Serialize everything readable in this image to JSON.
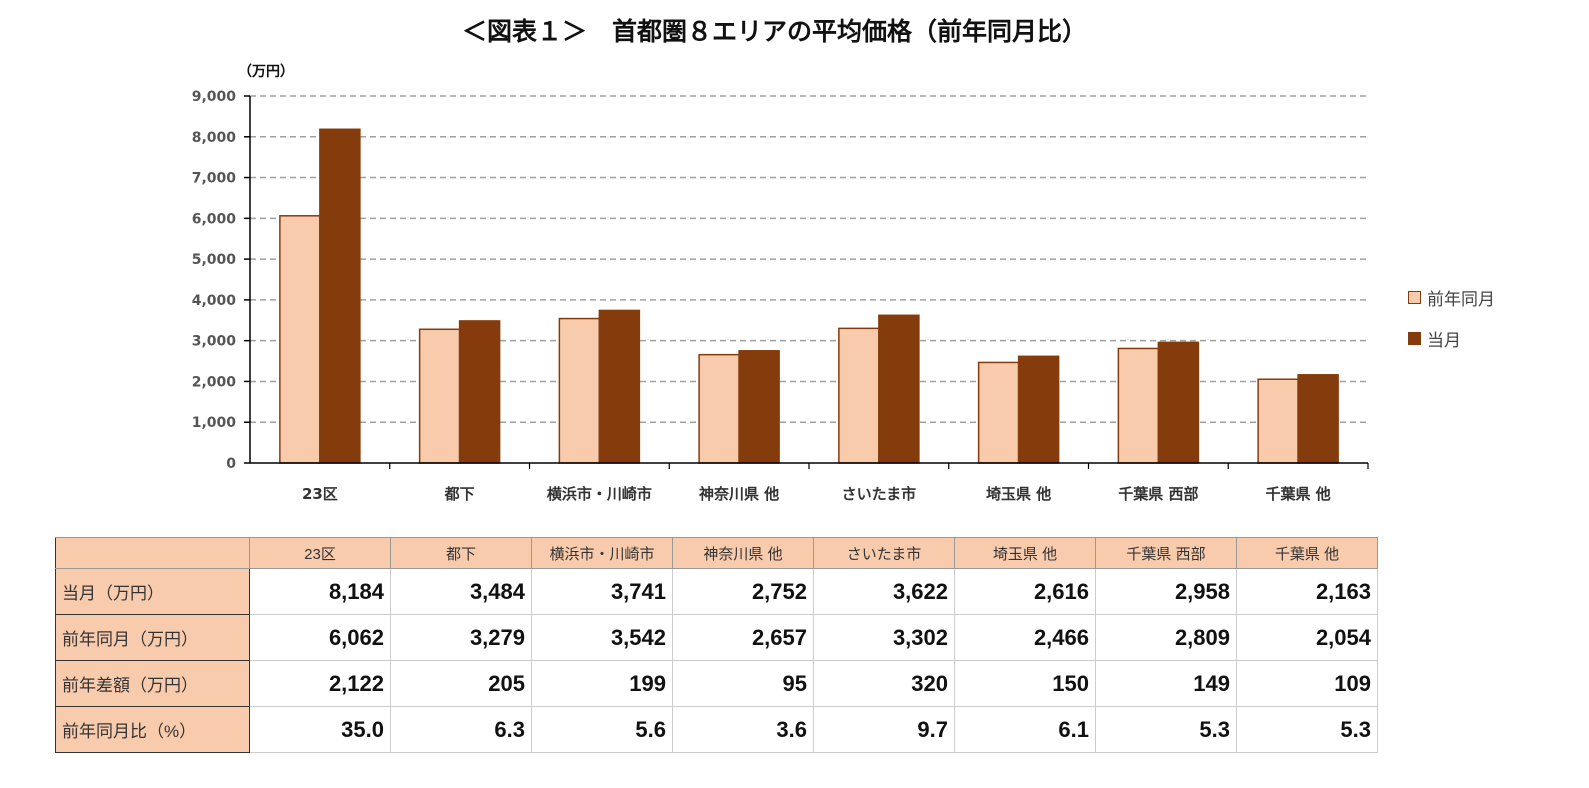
{
  "title": "＜図表１＞　首都圏８エリアの平均価格（前年同月比）",
  "chart_data": {
    "type": "bar",
    "title": "＜図表１＞　首都圏８エリアの平均価格（前年同月比）",
    "ylabel": "（万円）",
    "ylim": [
      0,
      9000
    ],
    "yticks": [
      "0",
      "1,000",
      "2,000",
      "3,000",
      "4,000",
      "5,000",
      "6,000",
      "7,000",
      "8,000",
      "9,000"
    ],
    "grid": true,
    "legend_position": "right",
    "categories": [
      "23区",
      "都下",
      "横浜市・川崎市",
      "神奈川県 他",
      "さいたま市",
      "埼玉県 他",
      "千葉県 西部",
      "千葉県 他"
    ],
    "series": [
      {
        "name": "前年同月",
        "color": "#f8cbad",
        "values": [
          6062,
          3279,
          3542,
          2657,
          3302,
          2466,
          2809,
          2054
        ]
      },
      {
        "name": "当月",
        "color": "#843c0c",
        "values": [
          8184,
          3484,
          3741,
          2752,
          3622,
          2616,
          2958,
          2163
        ]
      }
    ]
  },
  "table": {
    "header": [
      "",
      "23区",
      "都下",
      "横浜市・川崎市",
      "神奈川県 他",
      "さいたま市",
      "埼玉県 他",
      "千葉県 西部",
      "千葉県 他"
    ],
    "rows": [
      {
        "label": "当月（万円）",
        "values": [
          "8,184",
          "3,484",
          "3,741",
          "2,752",
          "3,622",
          "2,616",
          "2,958",
          "2,163"
        ]
      },
      {
        "label": "前年同月（万円）",
        "values": [
          "6,062",
          "3,279",
          "3,542",
          "2,657",
          "3,302",
          "2,466",
          "2,809",
          "2,054"
        ]
      },
      {
        "label": "前年差額（万円）",
        "values": [
          "2,122",
          "205",
          "199",
          "95",
          "320",
          "150",
          "149",
          "109"
        ]
      },
      {
        "label": "前年同月比（%）",
        "values": [
          "35.0",
          "6.3",
          "5.6",
          "3.6",
          "9.7",
          "6.1",
          "5.3",
          "5.3"
        ]
      }
    ]
  }
}
